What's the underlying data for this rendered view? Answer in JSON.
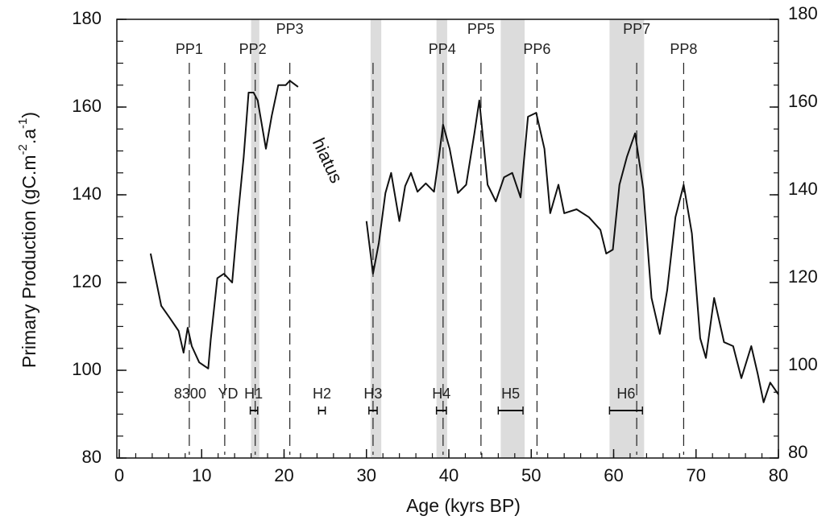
{
  "chart_data": {
    "type": "line",
    "xlabel": "Age (kyrs BP)",
    "ylabel": [
      "Primary Production (gC.m",
      "-2",
      ".a",
      "-1",
      ")"
    ],
    "annotation": "hiatus",
    "xlim": [
      0,
      80
    ],
    "xticks": [
      0,
      10,
      20,
      30,
      40,
      50,
      60,
      70,
      80
    ],
    "xminorticks": [
      0,
      2,
      4,
      6,
      8,
      10,
      12,
      14,
      16,
      18,
      20,
      22,
      24,
      26,
      28,
      30,
      32,
      34,
      36,
      38,
      40,
      42,
      44,
      46,
      48,
      50,
      52,
      54,
      56,
      58,
      60,
      62,
      64,
      66,
      68,
      70,
      72,
      74,
      76,
      78,
      80
    ],
    "ylim": [
      80,
      180
    ],
    "yticks": [
      80,
      100,
      120,
      140,
      160,
      180
    ],
    "yminorticks": [
      80,
      85,
      90,
      95,
      100,
      105,
      110,
      115,
      120,
      125,
      130,
      135,
      140,
      145,
      150,
      155,
      160,
      165,
      170,
      175,
      180
    ],
    "y2lim": [
      80,
      180
    ],
    "y2ticks": [
      80,
      100,
      120,
      140,
      160,
      180
    ],
    "y2minorticks": [
      80,
      85,
      90,
      95,
      100,
      105,
      110,
      115,
      120,
      125,
      130,
      135,
      140,
      145,
      150,
      155,
      160,
      165,
      170,
      175,
      180
    ],
    "band_color": "#dcdcdc",
    "bands": [
      [
        16.0,
        17.0
      ],
      [
        30.5,
        31.8
      ],
      [
        38.5,
        39.8
      ],
      [
        46.3,
        49.2
      ],
      [
        59.5,
        63.7
      ]
    ],
    "dashed_lines": [
      8.5,
      12.8,
      16.5,
      20.7,
      30.8,
      39.3,
      43.9,
      50.7,
      62.8,
      68.5
    ],
    "top_events": [
      {
        "label": "PP1",
        "age": 8.5
      },
      {
        "label": "PP2",
        "age": 16.2
      },
      {
        "label": "PP3",
        "age": 20.7
      },
      {
        "label": "PP4",
        "age": 39.2
      },
      {
        "label": "PP5",
        "age": 43.9
      },
      {
        "label": "PP6",
        "age": 50.7
      },
      {
        "label": "PP7",
        "age": 62.8
      },
      {
        "label": "PP8",
        "age": 68.5
      }
    ],
    "bottom_events": [
      {
        "label": "8300",
        "age": 8.6
      },
      {
        "label": "YD",
        "age": 13.2
      },
      {
        "label": "H1",
        "age": 16.3,
        "range": [
          15.9,
          16.8
        ]
      },
      {
        "label": "H2",
        "age": 24.6,
        "range": [
          24.2,
          25.0
        ]
      },
      {
        "label": "H3",
        "age": 30.8,
        "range": [
          30.3,
          31.3
        ]
      },
      {
        "label": "H4",
        "age": 39.1,
        "range": [
          38.5,
          39.7
        ]
      },
      {
        "label": "H5",
        "age": 47.5,
        "range": [
          46.0,
          49.0
        ]
      },
      {
        "label": "H6",
        "age": 61.5,
        "range": [
          59.5,
          63.5
        ]
      }
    ],
    "series": [
      {
        "name": "Primary production",
        "color": "#111",
        "x": [
          3.8,
          5.1,
          6.1,
          7.2,
          7.8,
          8.3,
          8.8,
          9.7,
          10.8,
          11.1,
          11.9,
          12.7,
          13.7,
          14.4,
          15.1,
          15.7,
          16.3,
          16.8,
          17.8,
          18.5,
          19.3,
          20.2,
          20.7,
          21.7,
          25.0,
          30.0,
          30.8,
          31.5,
          32.3,
          33.0,
          34.0,
          34.7,
          35.4,
          36.2,
          37.2,
          38.2,
          38.8,
          39.3,
          40.1,
          41.1,
          42.1,
          43.1,
          43.7,
          44.7,
          45.7,
          46.7,
          47.7,
          48.7,
          49.6,
          50.6,
          51.6,
          52.3,
          53.3,
          54.0,
          55.5,
          57.0,
          58.4,
          59.1,
          59.9,
          60.7,
          61.6,
          62.6,
          63.6,
          64.6,
          65.6,
          66.5,
          67.5,
          68.5,
          69.5,
          70.5,
          71.2,
          72.2,
          73.4,
          74.5,
          75.5,
          76.7,
          77.5,
          78.2,
          79.0,
          80.0
        ],
        "values": [
          126.6,
          114.7,
          112,
          109,
          104,
          109.7,
          105.5,
          101.8,
          100.4,
          107,
          121,
          122,
          120,
          135,
          148.6,
          163.3,
          163.3,
          161.5,
          150.5,
          158,
          165,
          165,
          166,
          164.6,
          null,
          134,
          122,
          129,
          140.4,
          145,
          134,
          142,
          145,
          140.7,
          142.6,
          140.7,
          148.6,
          156,
          150.5,
          140.4,
          142.3,
          154,
          161.5,
          142.3,
          138.5,
          144,
          145,
          139.4,
          157.8,
          158.7,
          150.5,
          135.8,
          142.3,
          135.8,
          136.7,
          134.9,
          132,
          126.6,
          127.5,
          142.3,
          148.6,
          154,
          141.3,
          116.5,
          108.3,
          118.3,
          134.9,
          142.3,
          131.2,
          107.3,
          102.8,
          116.5,
          106.4,
          105.5,
          98.2,
          105.5,
          99.1,
          92.7,
          97.2,
          94.5
        ]
      }
    ]
  }
}
